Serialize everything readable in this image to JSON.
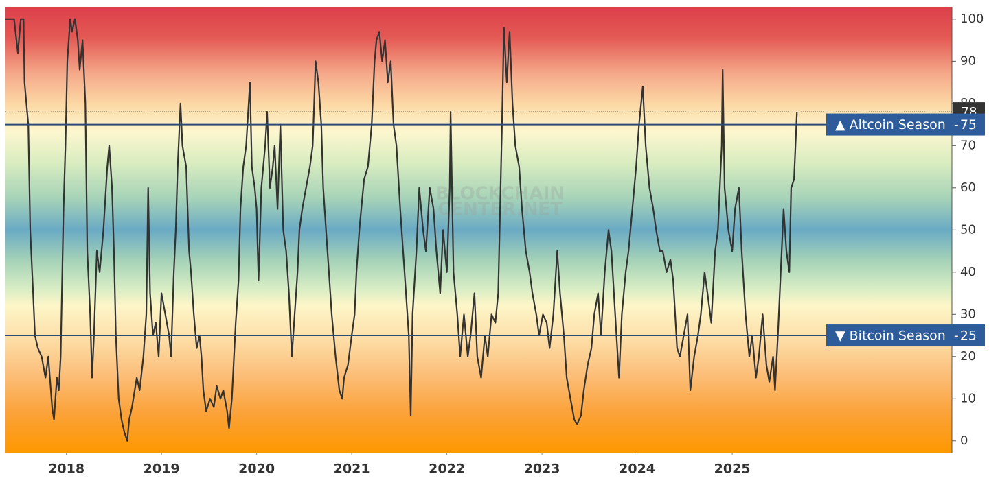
{
  "chart_data": {
    "type": "line",
    "x": [
      2017.36,
      2017.45,
      2017.49,
      2017.52,
      2017.55,
      2017.56,
      2017.6,
      2017.62,
      2017.65,
      2017.67,
      2017.7,
      2017.74,
      2017.78,
      2017.81,
      2017.85,
      2017.87,
      2017.9,
      2017.92,
      2017.94,
      2017.97,
      2017.99,
      2018.01,
      2018.04,
      2018.06,
      2018.09,
      2018.12,
      2018.14,
      2018.17,
      2018.2,
      2018.22,
      2018.25,
      2018.27,
      2018.29,
      2018.32,
      2018.35,
      2018.39,
      2018.43,
      2018.45,
      2018.48,
      2018.5,
      2018.52,
      2018.55,
      2018.58,
      2018.61,
      2018.64,
      2018.66,
      2018.69,
      2018.74,
      2018.77,
      2018.81,
      2018.84,
      2018.86,
      2018.88,
      2018.91,
      2018.94,
      2018.97,
      2019.0,
      2019.04,
      2019.08,
      2019.1,
      2019.13,
      2019.15,
      2019.17,
      2019.2,
      2019.22,
      2019.26,
      2019.29,
      2019.31,
      2019.34,
      2019.37,
      2019.4,
      2019.42,
      2019.44,
      2019.47,
      2019.51,
      2019.55,
      2019.58,
      2019.62,
      2019.65,
      2019.69,
      2019.71,
      2019.74,
      2019.78,
      2019.81,
      2019.83,
      2019.86,
      2019.89,
      2019.93,
      2019.95,
      2019.98,
      2020.0,
      2020.02,
      2020.05,
      2020.09,
      2020.11,
      2020.14,
      2020.17,
      2020.19,
      2020.22,
      2020.25,
      2020.28,
      2020.31,
      2020.34,
      2020.37,
      2020.4,
      2020.43,
      2020.45,
      2020.48,
      2020.52,
      2020.56,
      2020.59,
      2020.62,
      2020.65,
      2020.68,
      2020.7,
      2020.73,
      2020.76,
      2020.79,
      2020.83,
      2020.87,
      2020.9,
      2020.92,
      2020.96,
      2021.0,
      2021.03,
      2021.05,
      2021.08,
      2021.1,
      2021.13,
      2021.17,
      2021.21,
      2021.24,
      2021.26,
      2021.29,
      2021.32,
      2021.35,
      2021.38,
      2021.41,
      2021.44,
      2021.47,
      2021.51,
      2021.54,
      2021.57,
      2021.6,
      2021.62,
      2021.64,
      2021.68,
      2021.71,
      2021.75,
      2021.78,
      2021.82,
      2021.86,
      2021.89,
      2021.93,
      2021.96,
      2022.0,
      2022.03,
      2022.04,
      2022.07,
      2022.11,
      2022.14,
      2022.18,
      2022.22,
      2022.25,
      2022.29,
      2022.32,
      2022.36,
      2022.4,
      2022.43,
      2022.47,
      2022.51,
      2022.54,
      2022.58,
      2022.6,
      2022.63,
      2022.66,
      2022.69,
      2022.72,
      2022.76,
      2022.79,
      2022.83,
      2022.87,
      2022.9,
      2022.94,
      2022.97,
      2023.01,
      2023.05,
      2023.08,
      2023.12,
      2023.16,
      2023.19,
      2023.23,
      2023.26,
      2023.3,
      2023.34,
      2023.37,
      2023.41,
      2023.44,
      2023.48,
      2023.52,
      2023.55,
      2023.59,
      2023.62,
      2023.66,
      2023.7,
      2023.73,
      2023.77,
      2023.81,
      2023.84,
      2023.88,
      2023.91,
      2023.95,
      2023.99,
      2024.02,
      2024.06,
      2024.09,
      2024.13,
      2024.17,
      2024.2,
      2024.24,
      2024.27,
      2024.31,
      2024.35,
      2024.38,
      2024.42,
      2024.45,
      2024.49,
      2024.53,
      2024.56,
      2024.6,
      2024.64,
      2024.67,
      2024.71,
      2024.74,
      2024.78,
      2024.82,
      2024.85,
      2024.89,
      2024.9,
      2024.92,
      2024.96,
      2025.0,
      2025.03,
      2025.07,
      2025.1,
      2025.14,
      2025.18,
      2025.21,
      2025.25,
      2025.28,
      2025.32,
      2025.36,
      2025.39,
      2025.43,
      2025.45,
      2025.48,
      2025.51,
      2025.54,
      2025.57,
      2025.6,
      2025.62,
      2025.65,
      2025.68
    ],
    "series": [
      {
        "color": "#333333",
        "values": [
          100,
          100,
          92,
          100,
          100,
          85,
          75,
          50,
          35,
          25,
          22,
          20,
          15,
          20,
          8,
          5,
          15,
          12,
          20,
          55,
          70,
          90,
          100,
          97,
          100,
          95,
          88,
          95,
          80,
          45,
          30,
          15,
          25,
          45,
          40,
          50,
          65,
          70,
          60,
          45,
          25,
          10,
          5,
          2,
          0,
          5,
          8,
          15,
          12,
          20,
          30,
          60,
          35,
          25,
          28,
          20,
          35,
          30,
          25,
          20,
          40,
          50,
          65,
          80,
          70,
          65,
          45,
          40,
          30,
          22,
          25,
          20,
          12,
          7,
          10,
          8,
          13,
          10,
          12,
          7,
          3,
          10,
          28,
          38,
          55,
          65,
          70,
          85,
          65,
          60,
          55,
          38,
          60,
          70,
          78,
          60,
          65,
          70,
          55,
          75,
          50,
          45,
          35,
          20,
          30,
          40,
          50,
          55,
          60,
          65,
          70,
          90,
          85,
          75,
          60,
          50,
          40,
          30,
          20,
          12,
          10,
          15,
          18,
          25,
          30,
          40,
          50,
          55,
          62,
          65,
          75,
          90,
          95,
          97,
          90,
          95,
          85,
          90,
          75,
          70,
          55,
          45,
          35,
          25,
          6,
          30,
          45,
          60,
          50,
          45,
          60,
          55,
          45,
          35,
          50,
          40,
          60,
          78,
          40,
          30,
          20,
          30,
          20,
          25,
          35,
          20,
          15,
          25,
          20,
          30,
          28,
          35,
          75,
          98,
          85,
          97,
          80,
          70,
          65,
          55,
          45,
          40,
          35,
          30,
          25,
          30,
          28,
          22,
          30,
          45,
          35,
          25,
          15,
          10,
          5,
          4,
          6,
          12,
          18,
          22,
          30,
          35,
          25,
          40,
          50,
          45,
          30,
          15,
          30,
          40,
          45,
          55,
          65,
          75,
          84,
          70,
          60,
          55,
          50,
          45,
          45,
          40,
          43,
          38,
          22,
          20,
          25,
          30,
          12,
          20,
          25,
          30,
          40,
          35,
          28,
          45,
          50,
          70,
          88,
          60,
          50,
          45,
          55,
          60,
          45,
          30,
          20,
          25,
          15,
          20,
          30,
          18,
          14,
          20,
          12,
          25,
          40,
          55,
          45,
          40,
          60,
          62,
          78
        ]
      }
    ],
    "xlim": [
      2017.36,
      2027.31
    ],
    "xticks": [
      2018,
      2019,
      2020,
      2021,
      2022,
      2023,
      2024,
      2025
    ],
    "ylim": [
      -2.8,
      102.9
    ],
    "yticks": [
      0,
      10,
      20,
      30,
      40,
      50,
      60,
      70,
      80,
      90,
      100
    ],
    "current_value": 78,
    "reference_lines": [
      {
        "label": "▲ Altcoin Season  -",
        "value": 75,
        "color": "#2e5c9a"
      },
      {
        "label": "▼ Bitcoin Season  -",
        "value": 25,
        "color": "#2e5c9a"
      }
    ],
    "watermark": [
      "BLOCKCHAIN",
      "CENTER.NET"
    ]
  }
}
